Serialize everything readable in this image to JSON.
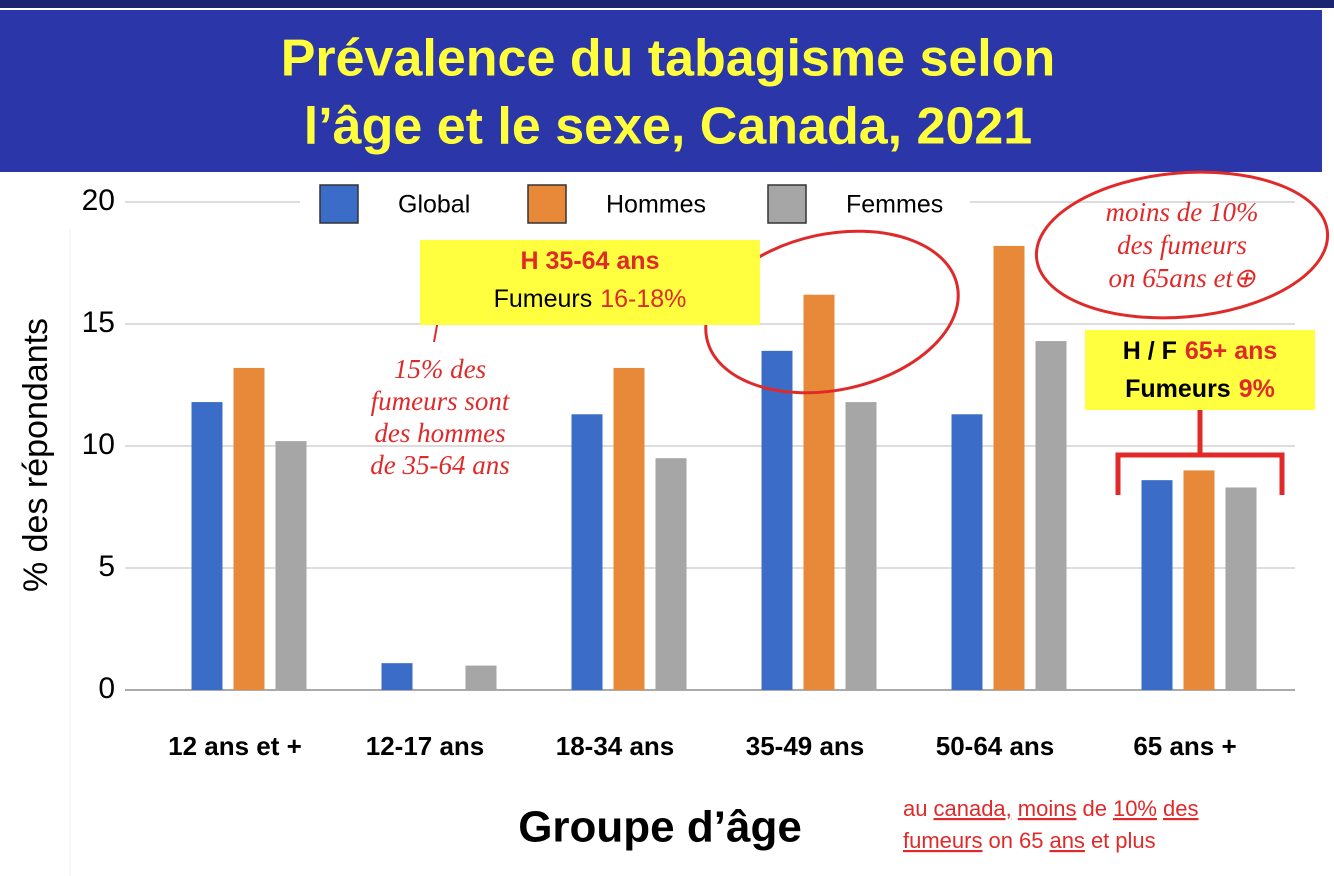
{
  "title": [
    "Prévalence du tabagisme selon",
    "l’âge et le sexe, Canada, 2021"
  ],
  "chart_data": {
    "type": "bar",
    "categories": [
      "12 ans et +",
      "12-17 ans",
      "18-34 ans",
      "35-49 ans",
      "50-64 ans",
      "65 ans +"
    ],
    "series": [
      {
        "name": "Global",
        "color": "#3b6cc7",
        "values": [
          11.8,
          1.1,
          11.3,
          13.9,
          11.3,
          8.6
        ]
      },
      {
        "name": "Hommes",
        "color": "#e8893a",
        "values": [
          13.2,
          null,
          13.2,
          16.2,
          18.2,
          9.0
        ]
      },
      {
        "name": "Femmes",
        "color": "#a6a6a6",
        "values": [
          10.2,
          1.0,
          9.5,
          11.8,
          14.3,
          8.3
        ]
      }
    ],
    "ylim": [
      0,
      20
    ],
    "yticks": [
      0,
      5,
      10,
      15,
      20
    ],
    "grid": true,
    "xlabel": "Groupe d’âge",
    "ylabel": "% des répondants"
  },
  "callouts": [
    {
      "lines": [
        [
          "H 35-64 ans"
        ],
        [
          "Fumeurs",
          "16-18%"
        ]
      ]
    },
    {
      "lines": [
        [
          "H / F",
          "65+ ans"
        ],
        [
          "Fumeurs",
          "9%"
        ]
      ]
    }
  ],
  "handwritten_notes": [
    [
      "15% des",
      "fumeurs sont",
      "des hommes",
      "de 35-64 ans"
    ],
    [
      "moins de 10%",
      "des fumeurs",
      "on 65ans et⊕"
    ]
  ],
  "bottom_note": [
    [
      "au",
      "canada,",
      "moins",
      "de",
      "10%",
      "des"
    ],
    [
      "fumeurs",
      "on",
      "65",
      "ans",
      "et",
      "plus"
    ]
  ]
}
